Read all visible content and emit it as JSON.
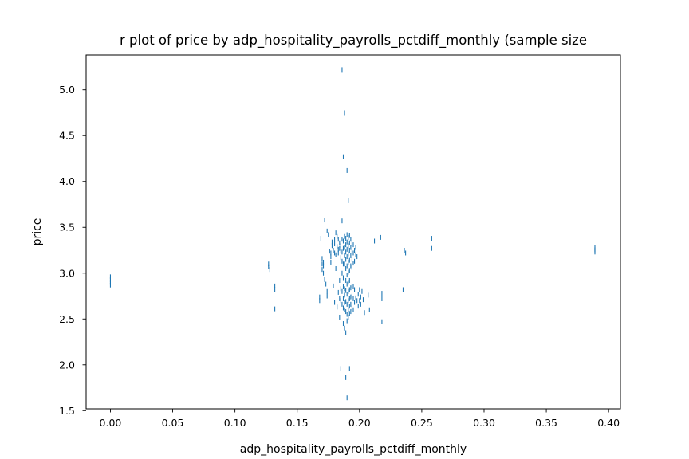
{
  "chart_data": {
    "type": "scatter",
    "title": "r plot of price by adp_hospitality_payrolls_pctdiff_monthly (sample size",
    "xlabel": "adp_hospitality_payrolls_pctdiff_monthly",
    "ylabel": "price",
    "xlim": [
      -0.0195,
      0.4095
    ],
    "ylim": [
      1.52,
      5.38
    ],
    "xticks": [
      0.0,
      0.05,
      0.1,
      0.15,
      0.2,
      0.25,
      0.3,
      0.35,
      0.4
    ],
    "xtick_labels": [
      "0.00",
      "0.05",
      "0.10",
      "0.15",
      "0.20",
      "0.25",
      "0.30",
      "0.35",
      "0.40"
    ],
    "yticks": [
      1.5,
      2.0,
      2.5,
      3.0,
      3.5,
      4.0,
      4.5,
      5.0
    ],
    "ytick_labels": [
      "1.5",
      "2.0",
      "2.5",
      "3.0",
      "3.5",
      "4.0",
      "4.5",
      "5.0"
    ],
    "grid": false,
    "marker": "|",
    "color": "#1f77b4",
    "series": [
      {
        "x": [
          0.0,
          0.0,
          0.0,
          0.0,
          0.127,
          0.127,
          0.128,
          0.132,
          0.132,
          0.132,
          0.168,
          0.168,
          0.169,
          0.17,
          0.17,
          0.17,
          0.171,
          0.171,
          0.171,
          0.172,
          0.172,
          0.173,
          0.174,
          0.174,
          0.174,
          0.175,
          0.176,
          0.177,
          0.177,
          0.177,
          0.178,
          0.178,
          0.179,
          0.179,
          0.18,
          0.18,
          0.18,
          0.18,
          0.181,
          0.181,
          0.181,
          0.182,
          0.182,
          0.182,
          0.183,
          0.183,
          0.183,
          0.183,
          0.184,
          0.184,
          0.184,
          0.184,
          0.184,
          0.185,
          0.185,
          0.185,
          0.185,
          0.185,
          0.186,
          0.186,
          0.186,
          0.186,
          0.186,
          0.186,
          0.187,
          0.187,
          0.187,
          0.187,
          0.187,
          0.187,
          0.187,
          0.187,
          0.188,
          0.188,
          0.188,
          0.188,
          0.188,
          0.188,
          0.188,
          0.188,
          0.188,
          0.189,
          0.189,
          0.189,
          0.189,
          0.189,
          0.189,
          0.189,
          0.189,
          0.189,
          0.189,
          0.19,
          0.19,
          0.19,
          0.19,
          0.19,
          0.19,
          0.19,
          0.19,
          0.19,
          0.19,
          0.19,
          0.191,
          0.191,
          0.191,
          0.191,
          0.191,
          0.191,
          0.191,
          0.191,
          0.191,
          0.191,
          0.192,
          0.192,
          0.192,
          0.192,
          0.192,
          0.192,
          0.192,
          0.192,
          0.192,
          0.192,
          0.193,
          0.193,
          0.193,
          0.193,
          0.193,
          0.193,
          0.193,
          0.193,
          0.194,
          0.194,
          0.194,
          0.194,
          0.194,
          0.194,
          0.194,
          0.195,
          0.195,
          0.195,
          0.195,
          0.195,
          0.195,
          0.196,
          0.196,
          0.196,
          0.196,
          0.197,
          0.197,
          0.197,
          0.198,
          0.198,
          0.199,
          0.199,
          0.2,
          0.2,
          0.201,
          0.201,
          0.202,
          0.203,
          0.204,
          0.207,
          0.208,
          0.212,
          0.217,
          0.218,
          0.218,
          0.218,
          0.235,
          0.236,
          0.237,
          0.258,
          0.258,
          0.389,
          0.389,
          0.389,
          0.389,
          0.186,
          0.187,
          0.188,
          0.19,
          0.191,
          0.192,
          0.189,
          0.19,
          0.186,
          0.185
        ],
        "y": [
          2.96,
          2.93,
          2.9,
          2.87,
          3.1,
          3.07,
          3.04,
          2.86,
          2.82,
          2.61,
          2.74,
          2.7,
          3.38,
          3.16,
          3.1,
          3.04,
          3.12,
          3.08,
          3.0,
          3.58,
          2.93,
          2.88,
          2.8,
          2.75,
          3.46,
          3.42,
          3.24,
          3.22,
          3.18,
          3.12,
          3.34,
          3.3,
          3.25,
          2.86,
          3.37,
          3.32,
          3.22,
          2.68,
          3.44,
          3.2,
          3.05,
          3.4,
          3.29,
          2.63,
          3.37,
          3.26,
          3.22,
          2.79,
          3.33,
          3.27,
          2.92,
          2.72,
          2.52,
          3.3,
          3.24,
          3.17,
          2.83,
          2.7,
          3.37,
          3.23,
          3.13,
          3.0,
          2.8,
          2.66,
          3.35,
          3.27,
          3.1,
          2.95,
          2.85,
          2.72,
          2.62,
          2.45,
          3.4,
          3.28,
          3.19,
          3.1,
          2.83,
          2.76,
          2.68,
          2.6,
          2.4,
          3.38,
          3.31,
          3.23,
          3.15,
          3.05,
          2.92,
          2.81,
          2.69,
          2.58,
          2.35,
          3.42,
          3.34,
          3.26,
          3.18,
          3.08,
          2.98,
          2.88,
          2.77,
          2.66,
          2.55,
          2.48,
          3.39,
          3.3,
          3.21,
          3.12,
          3.01,
          2.9,
          2.8,
          2.7,
          2.6,
          2.52,
          3.41,
          3.33,
          3.25,
          3.14,
          3.03,
          2.92,
          2.82,
          2.72,
          2.64,
          2.56,
          3.37,
          3.28,
          3.19,
          3.08,
          2.84,
          2.74,
          2.66,
          2.58,
          3.32,
          3.24,
          3.15,
          3.06,
          2.86,
          2.75,
          2.62,
          3.31,
          3.22,
          3.11,
          2.85,
          2.72,
          2.6,
          3.25,
          3.13,
          2.82,
          2.68,
          3.28,
          3.2,
          2.73,
          3.18,
          2.7,
          2.77,
          2.64,
          2.82,
          2.7,
          2.74,
          2.66,
          2.8,
          2.71,
          2.57,
          2.76,
          2.6,
          3.35,
          3.39,
          2.78,
          2.72,
          2.47,
          2.82,
          3.25,
          3.22,
          3.38,
          3.27,
          3.28,
          3.25,
          3.23,
          3.26,
          5.22,
          4.27,
          4.75,
          4.12,
          3.79,
          1.96,
          1.86,
          1.64,
          3.57,
          1.96
        ]
      }
    ]
  }
}
